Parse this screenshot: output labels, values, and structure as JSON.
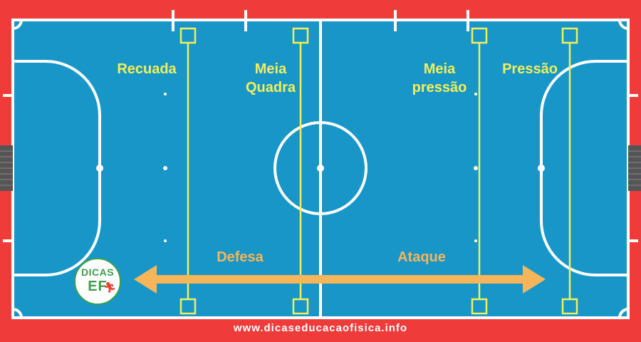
{
  "colors": {
    "border": "#f03b3b",
    "court": "#1896c8",
    "lines": "#ffffff",
    "zone_lines": "#f2ef5a",
    "arrow": "#f7b55a",
    "logo_green": "#3aa04a"
  },
  "zones": {
    "recuada": "Recuada",
    "meia_quadra_line1": "Meia",
    "meia_quadra_line2": "Quadra",
    "meia_pressao_line1": "Meia",
    "meia_pressao_line2": "pressão",
    "pressao": "Pressão"
  },
  "directions": {
    "defesa": "Defesa",
    "ataque": "Ataque",
    "arrow_icon": "double-headed-arrow"
  },
  "logo": {
    "top": "DICAS",
    "bottom": "EF",
    "figure_icon": "runner-icon"
  },
  "footer": {
    "website": "www.dicaseducacaofisica.info"
  }
}
